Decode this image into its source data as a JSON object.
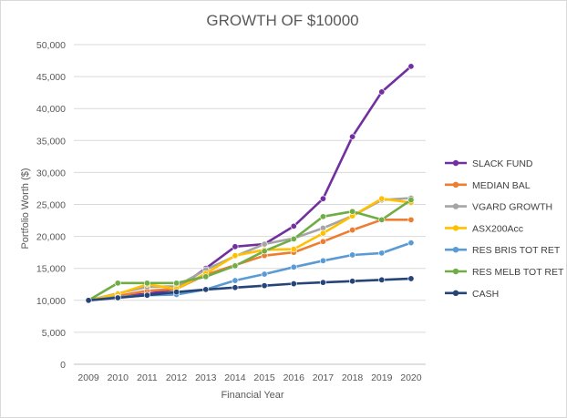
{
  "chart_data": {
    "type": "line",
    "title": "GROWTH OF $10000",
    "xlabel": "Financial Year",
    "ylabel": "Portfolio Worth ($)",
    "categories": [
      "2009",
      "2010",
      "2011",
      "2012",
      "2013",
      "2014",
      "2015",
      "2016",
      "2017",
      "2018",
      "2019",
      "2020"
    ],
    "ylim": [
      0,
      50000
    ],
    "yticks": [
      0,
      5000,
      10000,
      15000,
      20000,
      25000,
      30000,
      35000,
      40000,
      45000,
      50000
    ],
    "ytick_labels": [
      "0",
      "5,000",
      "10,000",
      "15,000",
      "20,000",
      "25,000",
      "30,000",
      "35,000",
      "40,000",
      "45,000",
      "50,000"
    ],
    "grid": true,
    "legend_position": "right",
    "series": [
      {
        "name": "SLACK FUND",
        "color": "#7030a0",
        "values": [
          10000,
          10700,
          11000,
          11800,
          15000,
          18400,
          18800,
          21600,
          25900,
          35600,
          42600,
          46600
        ]
      },
      {
        "name": "MEDIAN BAL",
        "color": "#ed7d31",
        "values": [
          10000,
          10700,
          11500,
          11800,
          14000,
          15500,
          17000,
          17500,
          19200,
          21000,
          22600,
          22600
        ]
      },
      {
        "name": "VGARD GROWTH",
        "color": "#a5a5a5",
        "values": [
          10000,
          11100,
          12100,
          12200,
          14800,
          16900,
          18800,
          19700,
          21300,
          23200,
          25700,
          26000
        ]
      },
      {
        "name": "ASX200Acc",
        "color": "#ffc000",
        "values": [
          10000,
          11000,
          12500,
          11800,
          14200,
          17000,
          17900,
          18000,
          20500,
          23200,
          25900,
          25300
        ]
      },
      {
        "name": "RES BRIS TOT RET",
        "color": "#5b9bd5",
        "values": [
          10000,
          10500,
          10800,
          10900,
          11700,
          13100,
          14100,
          15200,
          16200,
          17100,
          17400,
          19000
        ]
      },
      {
        "name": "RES MELB TOT RET",
        "color": "#70ad47",
        "values": [
          10000,
          12700,
          12700,
          12700,
          13700,
          15400,
          17700,
          19600,
          23100,
          23900,
          22600,
          25700
        ]
      },
      {
        "name": "CASH",
        "color": "#264478",
        "values": [
          10000,
          10400,
          10800,
          11300,
          11700,
          12000,
          12300,
          12600,
          12800,
          13000,
          13200,
          13400
        ]
      }
    ]
  }
}
